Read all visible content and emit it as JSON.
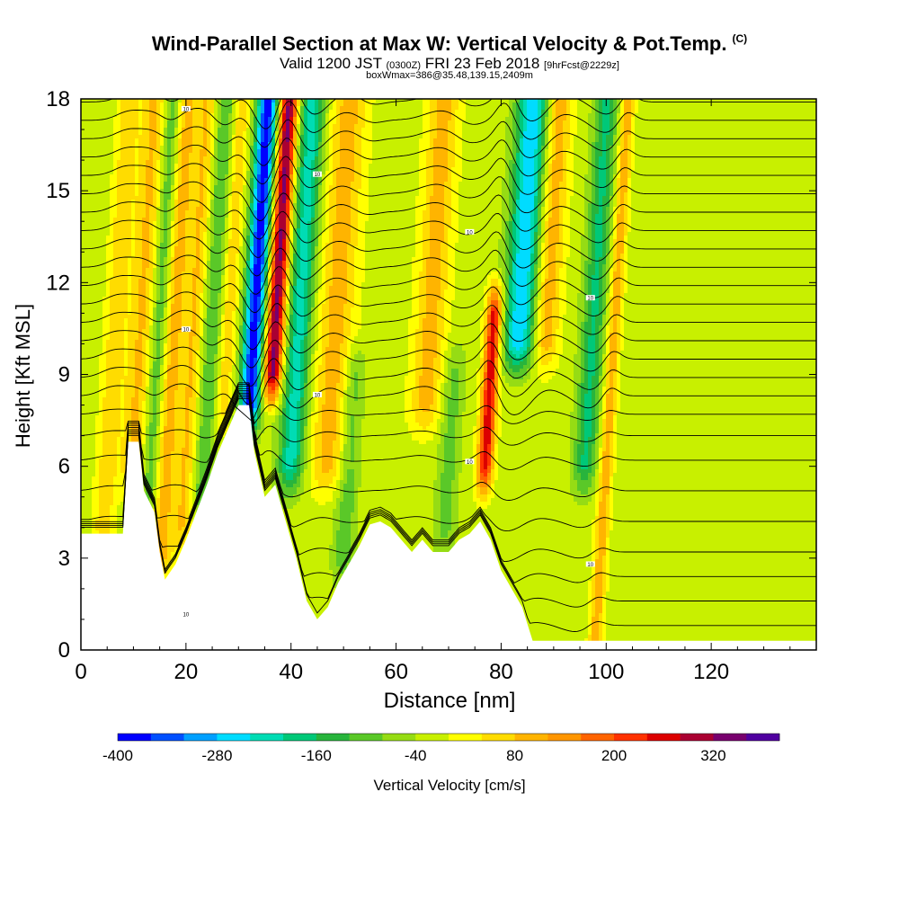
{
  "title": "Wind-Parallel Section at Max W: Vertical Velocity & Pot.Temp.",
  "copyright": "(C)",
  "subtitle": {
    "valid": "Valid 1200 JST",
    "utc": "(0300Z)",
    "date": "FRI 23 Feb 2018",
    "forecast": "[9hrFcst@2229z]"
  },
  "box_info": "boxWmax=386@35.48,139.15,2409m",
  "chart_data": {
    "type": "heatmap",
    "xlabel": "Distance [nm]",
    "ylabel": "Height [Kft MSL]",
    "xlim": [
      0,
      140
    ],
    "ylim": [
      0,
      18
    ],
    "x_ticks": [
      0,
      20,
      40,
      60,
      80,
      100,
      120
    ],
    "y_ticks": [
      0,
      3,
      6,
      9,
      12,
      15,
      18
    ],
    "colorbar": {
      "title": "Vertical Velocity [cm/s]",
      "range": [
        -400,
        400
      ],
      "step": 40,
      "tick_labels": [
        "-400",
        "-280",
        "-160",
        "-40",
        "80",
        "200",
        "320"
      ],
      "tick_values": [
        -400,
        -280,
        -160,
        -40,
        80,
        200,
        320
      ],
      "colors": [
        "#0000ff",
        "#0050ff",
        "#00a0ff",
        "#00dcff",
        "#00dcb4",
        "#00c878",
        "#28b43c",
        "#5ac828",
        "#96dc14",
        "#c8f000",
        "#ffff00",
        "#ffdc00",
        "#ffb400",
        "#ff9600",
        "#ff6400",
        "#ff3200",
        "#dc0000",
        "#aa0032",
        "#78006e",
        "#5000a0"
      ]
    },
    "background_w": -20,
    "terrain_kft": [
      [
        0,
        3.8
      ],
      [
        8,
        3.8
      ],
      [
        9,
        6.8
      ],
      [
        11,
        6.8
      ],
      [
        12,
        5.2
      ],
      [
        14,
        4.5
      ],
      [
        15,
        3.2
      ],
      [
        16,
        2.3
      ],
      [
        18,
        2.8
      ],
      [
        20,
        3.6
      ],
      [
        22,
        4.5
      ],
      [
        24,
        5.4
      ],
      [
        26,
        6.4
      ],
      [
        28,
        7.2
      ],
      [
        30,
        8.0
      ],
      [
        32,
        8.0
      ],
      [
        33,
        6.5
      ],
      [
        35,
        5.0
      ],
      [
        37,
        5.4
      ],
      [
        39,
        4.2
      ],
      [
        41,
        3.0
      ],
      [
        43,
        1.6
      ],
      [
        45,
        1.0
      ],
      [
        47,
        1.4
      ],
      [
        49,
        2.2
      ],
      [
        51,
        2.8
      ],
      [
        53,
        3.4
      ],
      [
        55,
        4.1
      ],
      [
        57,
        4.2
      ],
      [
        59,
        4.0
      ],
      [
        61,
        3.6
      ],
      [
        63,
        3.2
      ],
      [
        65,
        3.6
      ],
      [
        67,
        3.2
      ],
      [
        70,
        3.2
      ],
      [
        72,
        3.6
      ],
      [
        74,
        3.8
      ],
      [
        76,
        4.2
      ],
      [
        78,
        3.6
      ],
      [
        80,
        2.6
      ],
      [
        82,
        2.0
      ],
      [
        84,
        1.4
      ],
      [
        86,
        0.3
      ],
      [
        140,
        0.3
      ]
    ],
    "vertical_velocity_features": [
      {
        "x": 6,
        "w": 2,
        "ybot": 4,
        "ytop": 18,
        "value": 90
      },
      {
        "x": 11,
        "w": 2.5,
        "ybot": 6,
        "ytop": 18,
        "value": 110
      },
      {
        "x": 14.5,
        "w": 1.8,
        "ybot": 5,
        "ytop": 18,
        "value": -120
      },
      {
        "x": 17,
        "w": 2.2,
        "ybot": 3,
        "ytop": 18,
        "value": 130
      },
      {
        "x": 21,
        "w": 1.8,
        "ybot": 4,
        "ytop": 18,
        "value": 100
      },
      {
        "x": 24.5,
        "w": 1.8,
        "ybot": 5,
        "ytop": 18,
        "value": -100
      },
      {
        "x": 27.5,
        "w": 1.6,
        "ybot": 8,
        "ytop": 18,
        "value": 90
      },
      {
        "x": 32.5,
        "w": 2.0,
        "ybot": 8,
        "ytop": 18,
        "value": -370
      },
      {
        "x": 36.5,
        "w": 1.8,
        "ybot": 9,
        "ytop": 18,
        "value": 360
      },
      {
        "x": 41,
        "w": 2.5,
        "ybot": 6,
        "ytop": 18,
        "value": -200
      },
      {
        "x": 48,
        "w": 3.5,
        "ybot": 6,
        "ytop": 18,
        "value": 120
      },
      {
        "x": 52,
        "w": 2.0,
        "ybot": 3,
        "ytop": 9,
        "value": -90
      },
      {
        "x": 66,
        "w": 3.0,
        "ybot": 8,
        "ytop": 18,
        "value": 120
      },
      {
        "x": 71,
        "w": 2.0,
        "ybot": 4,
        "ytop": 9,
        "value": -80
      },
      {
        "x": 78,
        "w": 1.5,
        "ybot": 6,
        "ytop": 11,
        "value": 290
      },
      {
        "x": 83,
        "w": 3.0,
        "ybot": 10,
        "ytop": 18,
        "value": -260
      },
      {
        "x": 88,
        "w": 2.5,
        "ybot": 10,
        "ytop": 18,
        "value": 130
      },
      {
        "x": 97,
        "w": 2.2,
        "ybot": 6,
        "ytop": 18,
        "value": -150
      },
      {
        "x": 101,
        "w": 1.3,
        "ybot": 0.3,
        "ytop": 18,
        "value": 130
      }
    ],
    "isentrope_bases_kft": [
      0.8,
      1.6,
      2.4,
      3.2,
      4.2,
      5.2,
      6.2,
      7.0,
      7.7,
      8.3,
      8.9,
      9.5,
      10.1,
      10.7,
      11.3,
      11.9,
      12.5,
      13.1,
      13.7,
      14.3,
      14.9,
      15.5,
      16.1,
      16.7,
      17.3,
      17.9
    ],
    "isentrope_label_values": [
      "10",
      "10",
      "10",
      "10",
      "10",
      "10",
      "10",
      "10",
      "10",
      "10",
      "10",
      "10",
      "10",
      "10",
      "10",
      "10",
      "10",
      "10",
      "10",
      "10",
      "10",
      "10",
      "10",
      "10",
      "10",
      "10"
    ],
    "grid": false,
    "legend": "none"
  }
}
